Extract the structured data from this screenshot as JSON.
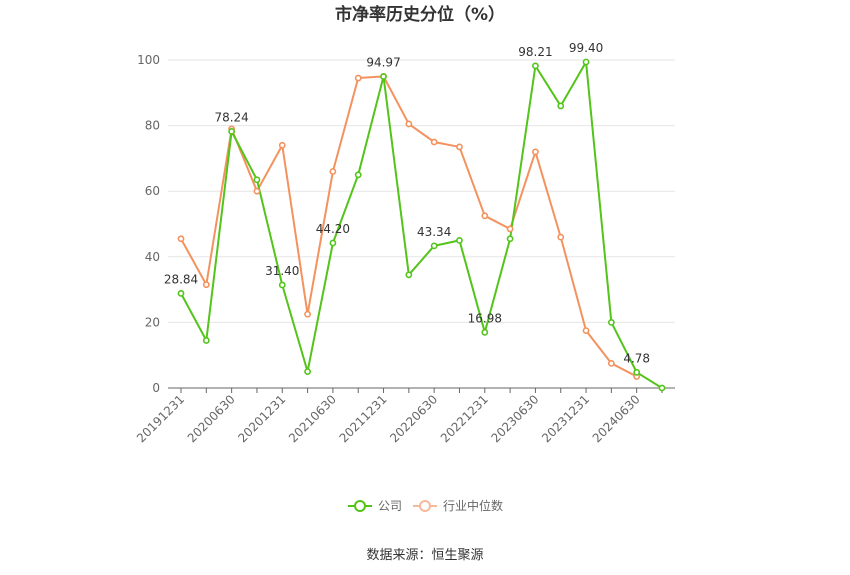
{
  "chart_data": {
    "type": "line",
    "title": "市净率历史分位（%）",
    "ylim": [
      0,
      100
    ],
    "yticks": [
      0,
      20,
      40,
      60,
      80,
      100
    ],
    "x_positions": [
      "20191231",
      "20200331",
      "20200630",
      "20200930",
      "20201231",
      "20210331",
      "20210630",
      "20210930",
      "20211231",
      "20220331",
      "20220630",
      "20220930",
      "20221231",
      "20230331",
      "20230630",
      "20230930",
      "20231231",
      "20240331",
      "20240630",
      "20240930"
    ],
    "x_tick_labels": [
      "20191231",
      "20200630",
      "20201231",
      "20210630",
      "20211231",
      "20220630",
      "20221231",
      "20230630",
      "20231231",
      "20240630"
    ],
    "series": [
      {
        "name": "公司",
        "color": "#52c41a",
        "values": [
          28.84,
          14.5,
          78.24,
          63.5,
          31.4,
          5.0,
          44.2,
          65.0,
          94.97,
          34.5,
          43.34,
          45.0,
          16.98,
          45.5,
          98.21,
          86.0,
          99.4,
          20.0,
          4.78,
          0.0
        ]
      },
      {
        "name": "行业中位数",
        "color": "#f4925e",
        "values": [
          45.5,
          31.5,
          79.0,
          60.0,
          74.0,
          22.5,
          66.0,
          94.5,
          95.0,
          80.5,
          75.0,
          73.5,
          52.5,
          48.5,
          72.0,
          46.0,
          17.5,
          7.5,
          3.5,
          null
        ]
      }
    ],
    "data_labels": [
      {
        "series": 0,
        "index": 0,
        "text": "28.84"
      },
      {
        "series": 0,
        "index": 2,
        "text": "78.24"
      },
      {
        "series": 0,
        "index": 4,
        "text": "31.40"
      },
      {
        "series": 0,
        "index": 6,
        "text": "44.20"
      },
      {
        "series": 0,
        "index": 8,
        "text": "94.97"
      },
      {
        "series": 0,
        "index": 10,
        "text": "43.34"
      },
      {
        "series": 0,
        "index": 12,
        "text": "16.98"
      },
      {
        "series": 0,
        "index": 14,
        "text": "98.21"
      },
      {
        "series": 0,
        "index": 16,
        "text": "99.40"
      },
      {
        "series": 0,
        "index": 18,
        "text": "4.78"
      }
    ],
    "grid": true,
    "legend_position": "bottom-center"
  },
  "legend": {
    "company_label": "公司",
    "industry_label": "行业中位数"
  },
  "source_text": "数据来源：恒生聚源"
}
